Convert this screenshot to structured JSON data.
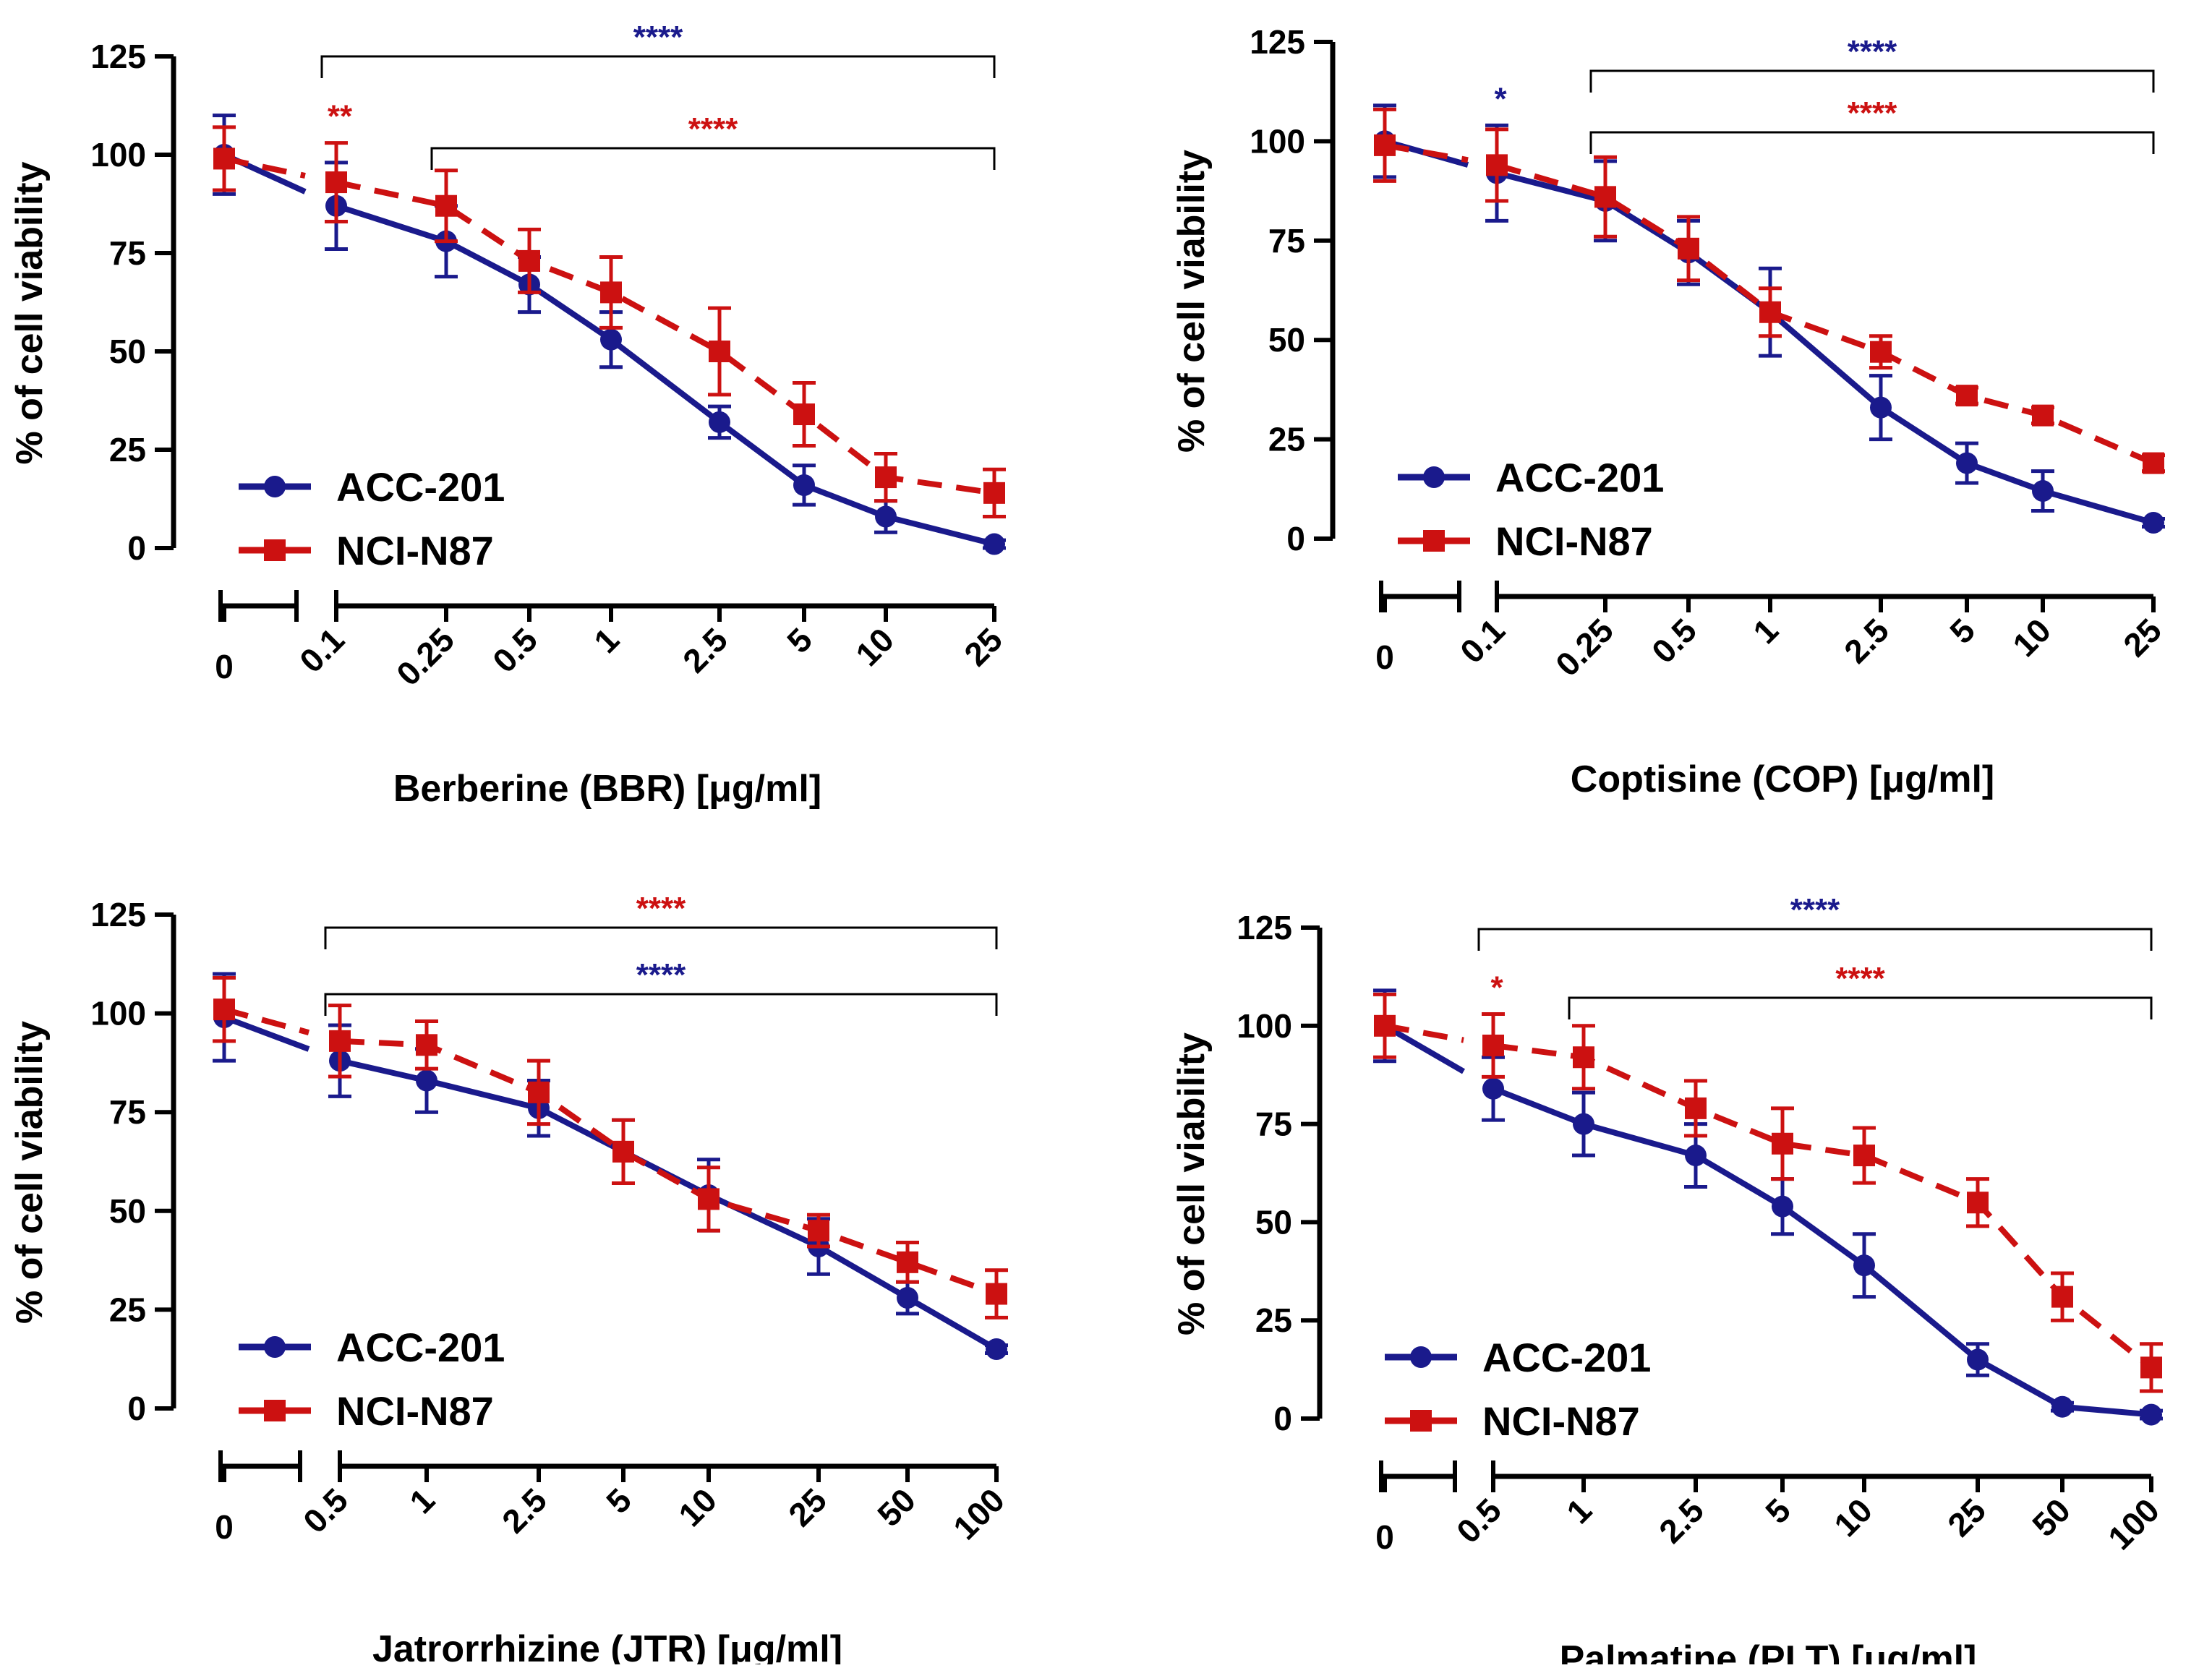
{
  "colors": {
    "acc": "#1a1a8c",
    "nci": "#cc1111",
    "axis": "#000000"
  },
  "chart_data": [
    {
      "type": "line",
      "xlabel": "Berberine (BBR) [μg/ml]",
      "ylabel": "% of cell viability",
      "ylim": [
        0,
        125
      ],
      "yticks": [
        "0",
        "25",
        "50",
        "75",
        "100",
        "125"
      ],
      "categories": [
        "0",
        "0.1",
        "0.25",
        "0.5",
        "1",
        "2.5",
        "5",
        "10",
        "25"
      ],
      "legend_position": "bottom-left",
      "series": [
        {
          "name": "ACC-201",
          "style": "solid-circle",
          "values": [
            100,
            87,
            78,
            67,
            53,
            32,
            16,
            8,
            1
          ],
          "errors": [
            10,
            11,
            9,
            7,
            7,
            4,
            5,
            4,
            1
          ]
        },
        {
          "name": "NCI-N87",
          "style": "dashed-square",
          "values": [
            99,
            93,
            87,
            73,
            65,
            50,
            34,
            18,
            14
          ],
          "errors": [
            8,
            10,
            9,
            8,
            9,
            11,
            8,
            6,
            6
          ]
        }
      ],
      "annotations": [
        {
          "text": "****",
          "color": "acc",
          "from": 1,
          "to": 8,
          "level": 0
        },
        {
          "text": "**",
          "color": "nci",
          "at": 1
        },
        {
          "text": "****",
          "color": "nci",
          "from": 2,
          "to": 8,
          "level": 1
        }
      ]
    },
    {
      "type": "line",
      "xlabel": "Coptisine (COP) [μg/ml]",
      "ylabel": "% of cell viability",
      "ylim": [
        0,
        125
      ],
      "yticks": [
        "0",
        "25",
        "50",
        "75",
        "100",
        "125"
      ],
      "categories": [
        "0",
        "0.1",
        "0.25",
        "0.5",
        "1",
        "2.5",
        "5",
        "10",
        "25"
      ],
      "legend_position": "bottom-left",
      "series": [
        {
          "name": "ACC-201",
          "style": "solid-circle",
          "values": [
            100,
            92,
            85,
            72,
            57,
            33,
            19,
            12,
            4
          ],
          "errors": [
            9,
            12,
            10,
            8,
            11,
            8,
            5,
            5,
            1
          ]
        },
        {
          "name": "NCI-N87",
          "style": "dashed-square",
          "values": [
            99,
            94,
            86,
            73,
            57,
            47,
            36,
            31,
            19
          ],
          "errors": [
            9,
            9,
            10,
            8,
            6,
            4,
            2,
            2,
            2
          ]
        }
      ],
      "annotations": [
        {
          "text": "*",
          "color": "acc",
          "at": 1
        },
        {
          "text": "****",
          "color": "acc",
          "from": 2,
          "to": 8,
          "level": 0
        },
        {
          "text": "****",
          "color": "nci",
          "from": 2,
          "to": 8,
          "level": 1
        }
      ]
    },
    {
      "type": "line",
      "xlabel": "Jatrorrhizine (JTR) [μg/ml]",
      "ylabel": "% of cell viability",
      "ylim": [
        0,
        125
      ],
      "yticks": [
        "0",
        "25",
        "50",
        "75",
        "100",
        "125"
      ],
      "categories": [
        "0",
        "0.5",
        "1",
        "2.5",
        "5",
        "10",
        "25",
        "50",
        "100"
      ],
      "legend_position": "bottom-left",
      "series": [
        {
          "name": "ACC-201",
          "style": "solid-circle",
          "values": [
            99,
            88,
            83,
            76,
            65,
            54,
            41,
            28,
            15
          ],
          "errors": [
            11,
            9,
            8,
            7,
            8,
            9,
            7,
            4,
            1
          ]
        },
        {
          "name": "NCI-N87",
          "style": "dashed-square",
          "values": [
            101,
            93,
            92,
            80,
            65,
            53,
            45,
            37,
            29
          ],
          "errors": [
            8,
            9,
            6,
            8,
            8,
            8,
            4,
            5,
            6
          ]
        }
      ],
      "annotations": [
        {
          "text": "****",
          "color": "nci",
          "from": 1,
          "to": 8,
          "level": 0
        },
        {
          "text": "****",
          "color": "acc",
          "from": 1,
          "to": 8,
          "level": 1
        }
      ]
    },
    {
      "type": "line",
      "xlabel": "Palmatine (PLT) [μg/ml]",
      "ylabel": "% of cell viability",
      "ylim": [
        0,
        125
      ],
      "yticks": [
        "0",
        "25",
        "50",
        "75",
        "100",
        "125"
      ],
      "categories": [
        "0",
        "0.5",
        "1",
        "2.5",
        "5",
        "10",
        "25",
        "50",
        "100"
      ],
      "legend_position": "bottom-left",
      "series": [
        {
          "name": "ACC-201",
          "style": "solid-circle",
          "values": [
            100,
            84,
            75,
            67,
            54,
            39,
            15,
            3,
            1
          ],
          "errors": [
            9,
            8,
            8,
            8,
            7,
            8,
            4,
            1,
            1
          ]
        },
        {
          "name": "NCI-N87",
          "style": "dashed-square",
          "values": [
            100,
            95,
            92,
            79,
            70,
            67,
            55,
            31,
            13
          ],
          "errors": [
            8,
            8,
            8,
            7,
            9,
            7,
            6,
            6,
            6
          ]
        }
      ],
      "annotations": [
        {
          "text": "****",
          "color": "acc",
          "from": 1,
          "to": 8,
          "level": 0
        },
        {
          "text": "*",
          "color": "nci",
          "at": 1
        },
        {
          "text": "****",
          "color": "nci",
          "from": 2,
          "to": 8,
          "level": 1
        }
      ]
    }
  ]
}
